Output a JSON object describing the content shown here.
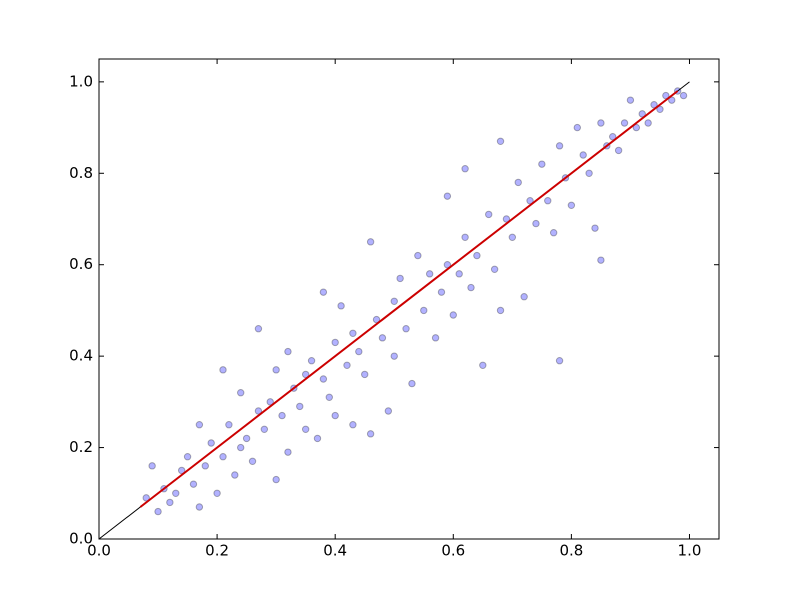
{
  "chart_data": {
    "type": "scatter",
    "xlim": [
      0,
      1.05
    ],
    "ylim": [
      0,
      1.05
    ],
    "xticks": [
      {
        "value": 0,
        "label": "0.0"
      },
      0.2,
      0.4,
      0.6,
      0.8,
      {
        "value": 1,
        "label": "1.0"
      }
    ],
    "yticks": [
      {
        "value": 0,
        "label": "0.0"
      },
      0.2,
      0.4,
      0.6,
      0.8,
      {
        "value": 1,
        "label": "1.0"
      }
    ],
    "grid": false,
    "series": [
      {
        "type": "scatter",
        "color": "#0000ff",
        "x": [
          0.08,
          0.09,
          0.1,
          0.11,
          0.12,
          0.13,
          0.14,
          0.15,
          0.16,
          0.17,
          0.17,
          0.18,
          0.19,
          0.2,
          0.21,
          0.21,
          0.22,
          0.23,
          0.24,
          0.24,
          0.25,
          0.26,
          0.27,
          0.27,
          0.28,
          0.29,
          0.3,
          0.3,
          0.31,
          0.32,
          0.32,
          0.33,
          0.34,
          0.35,
          0.35,
          0.36,
          0.37,
          0.38,
          0.38,
          0.39,
          0.4,
          0.4,
          0.41,
          0.42,
          0.43,
          0.43,
          0.44,
          0.45,
          0.46,
          0.46,
          0.47,
          0.48,
          0.49,
          0.5,
          0.5,
          0.51,
          0.52,
          0.53,
          0.54,
          0.55,
          0.56,
          0.57,
          0.58,
          0.59,
          0.59,
          0.6,
          0.61,
          0.62,
          0.62,
          0.63,
          0.64,
          0.65,
          0.66,
          0.67,
          0.68,
          0.68,
          0.69,
          0.7,
          0.71,
          0.72,
          0.73,
          0.74,
          0.75,
          0.76,
          0.77,
          0.78,
          0.78,
          0.79,
          0.8,
          0.81,
          0.82,
          0.83,
          0.84,
          0.85,
          0.85,
          0.86,
          0.87,
          0.88,
          0.89,
          0.9,
          0.91,
          0.92,
          0.93,
          0.94,
          0.95,
          0.96,
          0.97,
          0.98,
          0.99
        ],
        "y": [
          0.09,
          0.16,
          0.06,
          0.11,
          0.08,
          0.1,
          0.15,
          0.18,
          0.12,
          0.07,
          0.25,
          0.16,
          0.21,
          0.1,
          0.37,
          0.18,
          0.25,
          0.14,
          0.32,
          0.2,
          0.22,
          0.17,
          0.46,
          0.28,
          0.24,
          0.3,
          0.13,
          0.37,
          0.27,
          0.41,
          0.19,
          0.33,
          0.29,
          0.36,
          0.24,
          0.39,
          0.22,
          0.54,
          0.35,
          0.31,
          0.43,
          0.27,
          0.51,
          0.38,
          0.45,
          0.25,
          0.41,
          0.36,
          0.65,
          0.23,
          0.48,
          0.44,
          0.28,
          0.52,
          0.4,
          0.57,
          0.46,
          0.34,
          0.62,
          0.5,
          0.58,
          0.44,
          0.54,
          0.75,
          0.6,
          0.49,
          0.58,
          0.81,
          0.66,
          0.55,
          0.62,
          0.38,
          0.71,
          0.59,
          0.87,
          0.5,
          0.7,
          0.66,
          0.78,
          0.53,
          0.74,
          0.69,
          0.82,
          0.74,
          0.67,
          0.39,
          0.86,
          0.79,
          0.73,
          0.9,
          0.84,
          0.8,
          0.68,
          0.61,
          0.91,
          0.86,
          0.88,
          0.85,
          0.91,
          0.96,
          0.9,
          0.93,
          0.91,
          0.95,
          0.94,
          0.97,
          0.96,
          0.98,
          0.97
        ]
      },
      {
        "type": "line",
        "color": "#000000",
        "x": [
          0,
          1
        ],
        "y": [
          0,
          1
        ]
      },
      {
        "type": "line",
        "color": "#cc0000",
        "x": [
          0.07,
          0.98
        ],
        "y": [
          0.07,
          0.98
        ]
      }
    ]
  }
}
